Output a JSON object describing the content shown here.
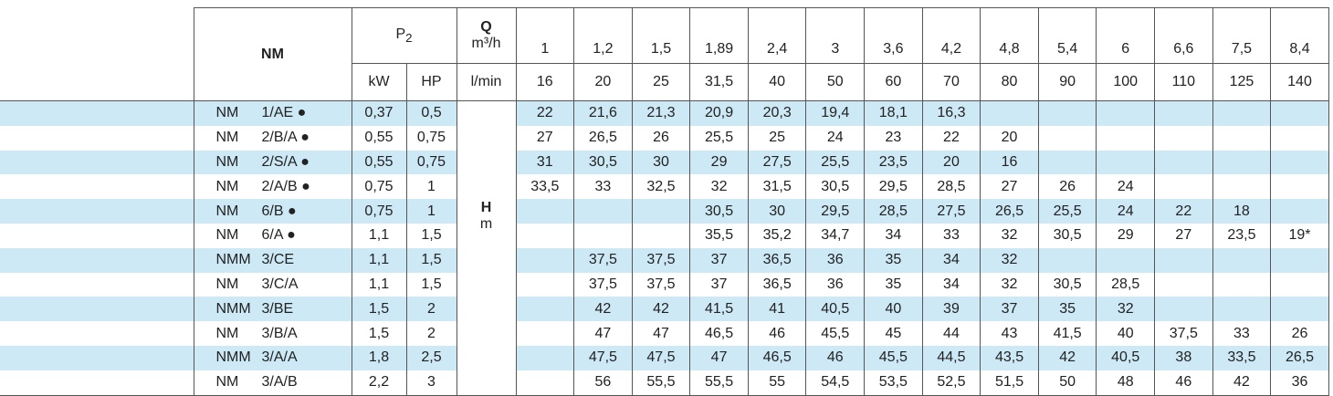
{
  "header": {
    "model": "NM",
    "power": {
      "main": "P",
      "sub": "2"
    },
    "kw": "kW",
    "hp": "HP",
    "q": "Q",
    "q_unit_1": "m³/h",
    "q_unit_2": "l/min",
    "h": "H",
    "h_unit": "m",
    "flow_m3h": [
      "1",
      "1,2",
      "1,5",
      "1,89",
      "2,4",
      "3",
      "3,6",
      "4,2",
      "4,8",
      "5,4",
      "6",
      "6,6",
      "7,5",
      "8,4"
    ],
    "flow_lmin": [
      "16",
      "20",
      "25",
      "31,5",
      "40",
      "50",
      "60",
      "70",
      "80",
      "90",
      "100",
      "110",
      "125",
      "140"
    ]
  },
  "table": {
    "rows": [
      {
        "series": "NM",
        "code": "1/AE ●",
        "kw": "0,37",
        "hp": "0,5",
        "heads": [
          "22",
          "21,6",
          "21,3",
          "20,9",
          "20,3",
          "19,4",
          "18,1",
          "16,3",
          null,
          null,
          null,
          null,
          null,
          null
        ]
      },
      {
        "series": "NM",
        "code": "2/B/A ●",
        "kw": "0,55",
        "hp": "0,75",
        "heads": [
          "27",
          "26,5",
          "26",
          "25,5",
          "25",
          "24",
          "23",
          "22",
          "20",
          null,
          null,
          null,
          null,
          null
        ]
      },
      {
        "series": "NM",
        "code": "2/S/A ●",
        "kw": "0,55",
        "hp": "0,75",
        "heads": [
          "31",
          "30,5",
          "30",
          "29",
          "27,5",
          "25,5",
          "23,5",
          "20",
          "16",
          null,
          null,
          null,
          null,
          null
        ]
      },
      {
        "series": "NM",
        "code": "2/A/B ●",
        "kw": "0,75",
        "hp": "1",
        "heads": [
          "33,5",
          "33",
          "32,5",
          "32",
          "31,5",
          "30,5",
          "29,5",
          "28,5",
          "27",
          "26",
          "24",
          null,
          null,
          null
        ]
      },
      {
        "series": "NM",
        "code": "6/B ●",
        "kw": "0,75",
        "hp": "1",
        "heads": [
          null,
          null,
          null,
          "30,5",
          "30",
          "29,5",
          "28,5",
          "27,5",
          "26,5",
          "25,5",
          "24",
          "22",
          "18",
          null
        ]
      },
      {
        "series": "NM",
        "code": "6/A ●",
        "kw": "1,1",
        "hp": "1,5",
        "heads": [
          null,
          null,
          null,
          "35,5",
          "35,2",
          "34,7",
          "34",
          "33",
          "32",
          "30,5",
          "29",
          "27",
          "23,5",
          "19*"
        ]
      },
      {
        "series": "NMM",
        "code": "3/CE",
        "kw": "1,1",
        "hp": "1,5",
        "heads": [
          null,
          "37,5",
          "37,5",
          "37",
          "36,5",
          "36",
          "35",
          "34",
          "32",
          null,
          null,
          null,
          null,
          null
        ]
      },
      {
        "series": "NM",
        "code": "3/C/A",
        "kw": "1,1",
        "hp": "1,5",
        "heads": [
          null,
          "37,5",
          "37,5",
          "37",
          "36,5",
          "36",
          "35",
          "34",
          "32",
          "30,5",
          "28,5",
          null,
          null,
          null
        ]
      },
      {
        "series": "NMM",
        "code": "3/BE",
        "kw": "1,5",
        "hp": "2",
        "heads": [
          null,
          "42",
          "42",
          "41,5",
          "41",
          "40,5",
          "40",
          "39",
          "37",
          "35",
          "32",
          null,
          null,
          null
        ]
      },
      {
        "series": "NM",
        "code": "3/B/A",
        "kw": "1,5",
        "hp": "2",
        "heads": [
          null,
          "47",
          "47",
          "46,5",
          "46",
          "45,5",
          "45",
          "44",
          "43",
          "41,5",
          "40",
          "37,5",
          "33",
          "26"
        ]
      },
      {
        "series": "NMM",
        "code": "3/A/A",
        "kw": "1,8",
        "hp": "2,5",
        "heads": [
          null,
          "47,5",
          "47,5",
          "47",
          "46,5",
          "46",
          "45,5",
          "44,5",
          "43,5",
          "42",
          "40,5",
          "38",
          "33,5",
          "26,5"
        ]
      },
      {
        "series": "NM",
        "code": "3/A/B",
        "kw": "2,2",
        "hp": "3",
        "heads": [
          null,
          "56",
          "55,5",
          "55,5",
          "55",
          "54,5",
          "53,5",
          "52,5",
          "51,5",
          "50",
          "48",
          "46",
          "42",
          "36"
        ]
      }
    ]
  }
}
